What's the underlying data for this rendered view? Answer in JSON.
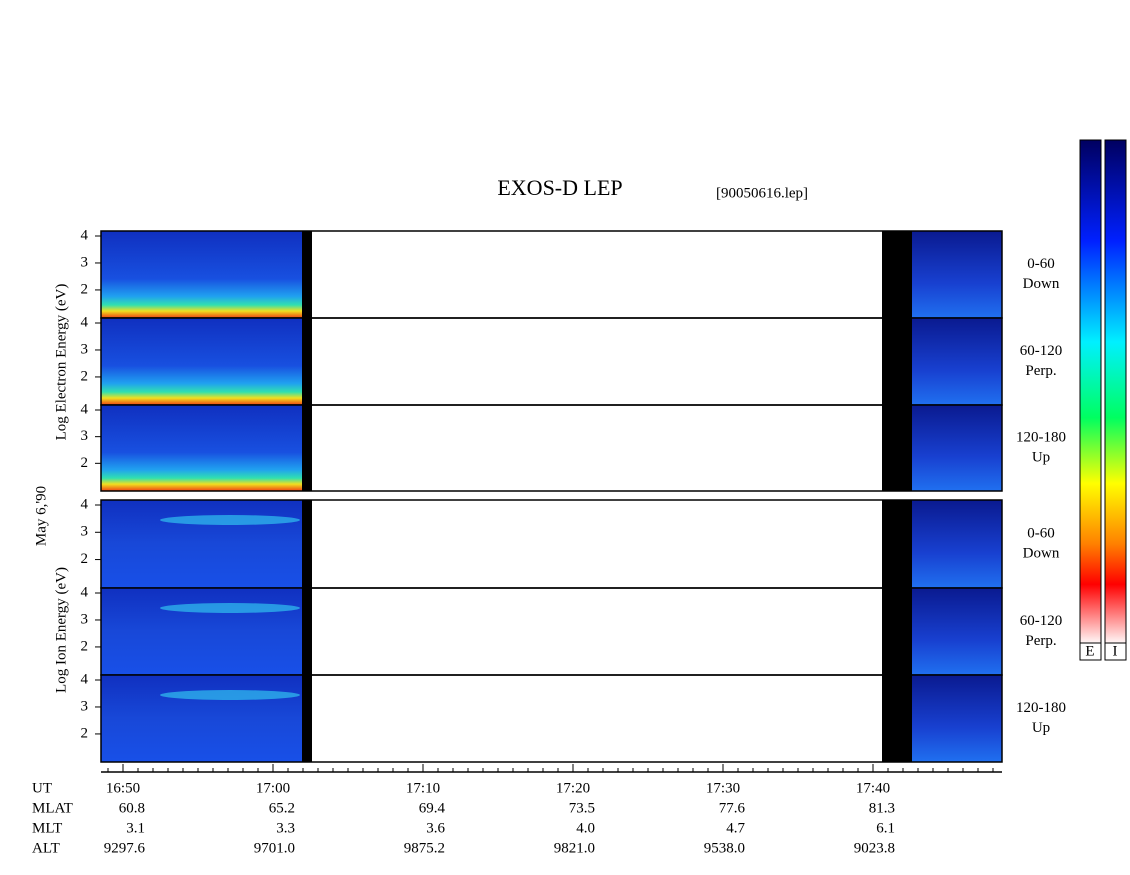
{
  "title": "EXOS-D LEP",
  "file": "[90050616.lep]",
  "date_label": "May 6,'90",
  "electron_label": "Log Electron Energy (eV)",
  "ion_label": "Log Ion Energy (eV)",
  "energy_ticks": [
    "4",
    "3",
    "2"
  ],
  "panel_labels": [
    [
      "0-60",
      "Down"
    ],
    [
      "60-120",
      "Perp."
    ],
    [
      "120-180",
      "Up"
    ]
  ],
  "time_row": {
    "name": "UT",
    "values": [
      "16:50",
      "17:00",
      "17:10",
      "17:20",
      "17:30",
      "17:40"
    ]
  },
  "info_rows": [
    {
      "name": "MLAT",
      "values": [
        "60.8",
        "65.2",
        "69.4",
        "73.5",
        "77.6",
        "81.3"
      ]
    },
    {
      "name": "MLT",
      "values": [
        "3.1",
        "3.3",
        "3.6",
        "4.0",
        "4.7",
        "6.1"
      ]
    },
    {
      "name": "ALT",
      "values": [
        "9297.6",
        "9701.0",
        "9875.2",
        "9821.0",
        "9538.0",
        "9023.8"
      ]
    }
  ],
  "colorbar_labels": [
    "E",
    "I"
  ]
}
